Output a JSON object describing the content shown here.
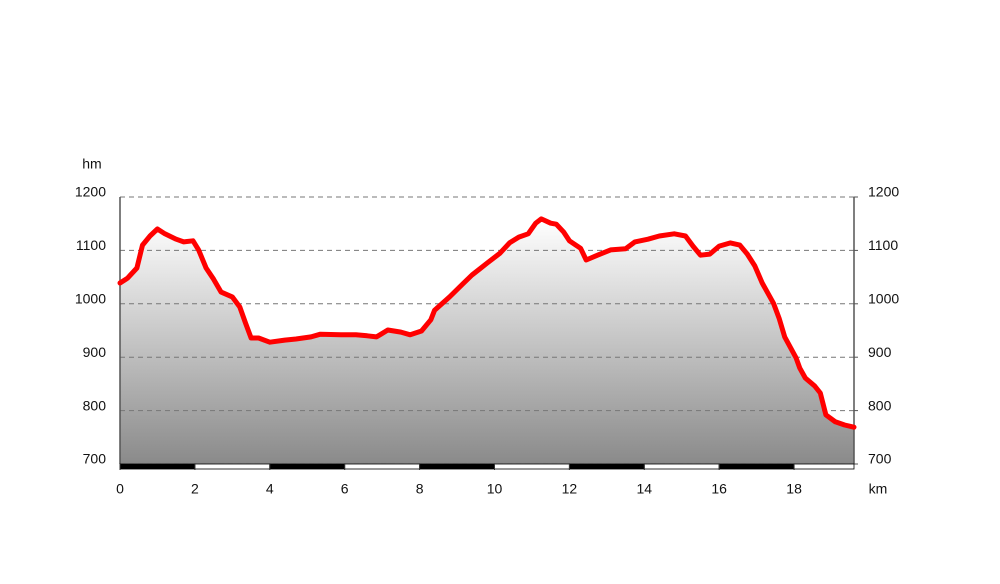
{
  "chart_data": {
    "type": "area",
    "y_label": "hm",
    "x_label": "km",
    "x": [
      0,
      0.2,
      0.45,
      0.6,
      0.8,
      1.0,
      1.2,
      1.5,
      1.7,
      1.95,
      2.1,
      2.3,
      2.5,
      2.7,
      3.0,
      3.2,
      3.35,
      3.5,
      3.7,
      4.0,
      4.4,
      4.7,
      5.1,
      5.35,
      5.9,
      6.3,
      6.6,
      6.85,
      7.15,
      7.5,
      7.75,
      8.05,
      8.3,
      8.4,
      8.8,
      9.15,
      9.4,
      9.6,
      9.8,
      10.15,
      10.4,
      10.65,
      10.9,
      11.1,
      11.25,
      11.5,
      11.65,
      11.85,
      12.0,
      12.3,
      12.45,
      12.75,
      13.1,
      13.5,
      13.75,
      14.1,
      14.4,
      14.8,
      15.1,
      15.3,
      15.5,
      15.75,
      16.0,
      16.3,
      16.55,
      16.75,
      16.95,
      17.15,
      17.45,
      17.6,
      17.75,
      18.05,
      18.15,
      18.3,
      18.55,
      18.7,
      18.85,
      19.1,
      19.35,
      19.6
    ],
    "series": [
      {
        "color": "#ff0000",
        "values": [
          1039,
          1048,
          1067,
          1110,
          1127,
          1140,
          1131,
          1121,
          1116,
          1118,
          1101,
          1067,
          1046,
          1022,
          1013,
          994,
          964,
          936,
          936,
          928,
          932,
          934,
          938,
          943,
          942,
          942,
          940,
          938,
          951,
          947,
          942,
          949,
          970,
          988,
          1013,
          1037,
          1054,
          1065,
          1076,
          1095,
          1114,
          1125,
          1131,
          1151,
          1159,
          1151,
          1149,
          1134,
          1118,
          1104,
          1082,
          1091,
          1101,
          1103,
          1116,
          1121,
          1127,
          1131,
          1127,
          1108,
          1091,
          1093,
          1108,
          1114,
          1110,
          1093,
          1071,
          1039,
          1001,
          973,
          938,
          899,
          880,
          861,
          846,
          833,
          792,
          779,
          773,
          769
        ]
      }
    ],
    "xlim": [
      0,
      19.6
    ],
    "xticks": [
      0,
      2,
      4,
      6,
      8,
      10,
      12,
      14,
      16,
      18
    ],
    "ylim": [
      700,
      1200
    ],
    "yticks": [
      700,
      800,
      900,
      1000,
      1100,
      1200
    ],
    "y2lim": [
      700,
      1200
    ],
    "y2ticks": [
      700,
      800,
      900,
      1000,
      1100,
      1200
    ],
    "grid": true
  }
}
